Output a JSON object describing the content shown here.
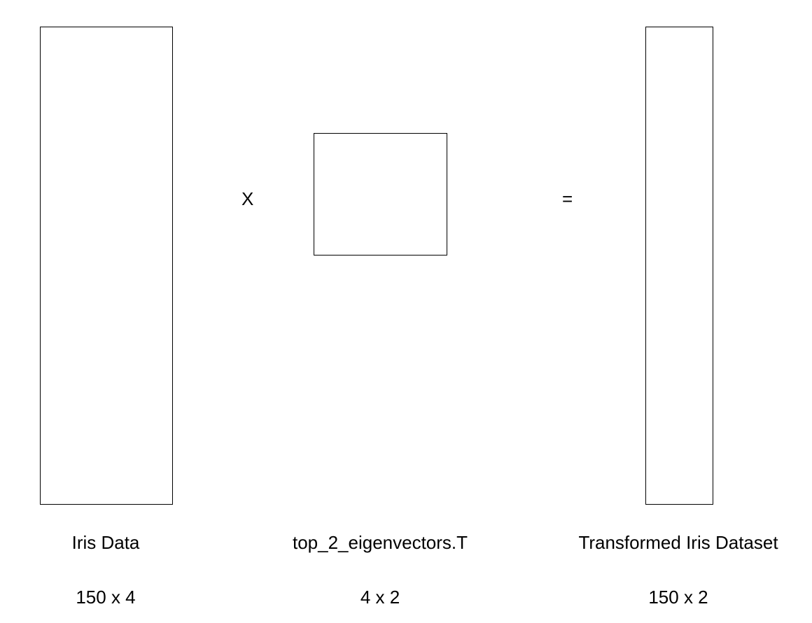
{
  "operators": {
    "multiply": "X",
    "equals": "="
  },
  "matrices": [
    {
      "label": "Iris Data",
      "dims": "150 x 4"
    },
    {
      "label": "top_2_eigenvectors.T",
      "dims": "4 x 2"
    },
    {
      "label": "Transformed Iris Dataset",
      "dims": "150 x 2"
    }
  ]
}
